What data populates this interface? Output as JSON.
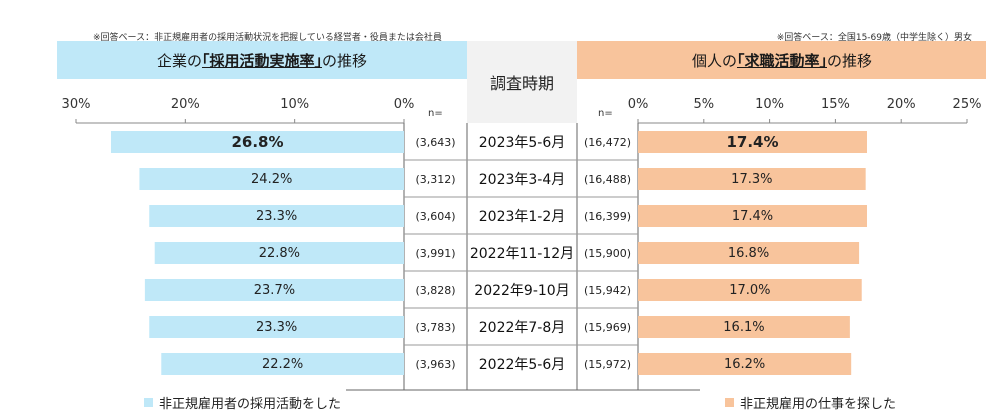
{
  "notes": {
    "left": "※回答ベース：非正規雇用者の採用活動状況を把握している経営者・役員または会社員",
    "right": "※回答ベース：全国15-69歳（中学生除く）男女"
  },
  "headers": {
    "left_pre": "企業の",
    "left_em": "｢採用活動実施率｣",
    "left_post": "の推移",
    "center": "調査時期",
    "right_pre": "個人の",
    "right_em": "｢求職活動率｣",
    "right_post": "の推移"
  },
  "n_label": "n=",
  "legend": {
    "left": "非正規雇用者の採用活動をした",
    "right": "非正規雇用の仕事を探した"
  },
  "colors": {
    "left": "#bfe8f8",
    "right": "#f8c49c",
    "center": "#f2f2f2"
  },
  "chart_data": [
    {
      "type": "bar",
      "orientation": "horizontal-reversed",
      "title": "企業の｢採用活動実施率｣の推移",
      "categories": [
        "2023年5-6月",
        "2023年3-4月",
        "2023年1-2月",
        "2022年11-12月",
        "2022年9-10月",
        "2022年7-8月",
        "2022年5-6月"
      ],
      "values": [
        26.8,
        24.2,
        23.3,
        22.8,
        23.7,
        23.3,
        22.2
      ],
      "value_labels": [
        "26.8%",
        "24.2%",
        "23.3%",
        "22.8%",
        "23.7%",
        "23.3%",
        "22.2%"
      ],
      "n": [
        "(3,643)",
        "(3,312)",
        "(3,604)",
        "(3,991)",
        "(3,828)",
        "(3,783)",
        "(3,963)"
      ],
      "xlim": [
        0,
        30
      ],
      "ticks": [
        "30%",
        "20%",
        "10%",
        "0%"
      ],
      "highlight_index": 0
    },
    {
      "type": "bar",
      "orientation": "horizontal",
      "title": "個人の｢求職活動率｣の推移",
      "categories": [
        "2023年5-6月",
        "2023年3-4月",
        "2023年1-2月",
        "2022年11-12月",
        "2022年9-10月",
        "2022年7-8月",
        "2022年5-6月"
      ],
      "values": [
        17.4,
        17.3,
        17.4,
        16.8,
        17.0,
        16.1,
        16.2
      ],
      "value_labels": [
        "17.4%",
        "17.3%",
        "17.4%",
        "16.8%",
        "17.0%",
        "16.1%",
        "16.2%"
      ],
      "n": [
        "(16,472)",
        "(16,488)",
        "(16,399)",
        "(15,900)",
        "(15,942)",
        "(15,969)",
        "(15,972)"
      ],
      "xlim": [
        0,
        25
      ],
      "ticks": [
        "0%",
        "5%",
        "10%",
        "15%",
        "20%",
        "25%"
      ],
      "highlight_index": 0
    }
  ]
}
